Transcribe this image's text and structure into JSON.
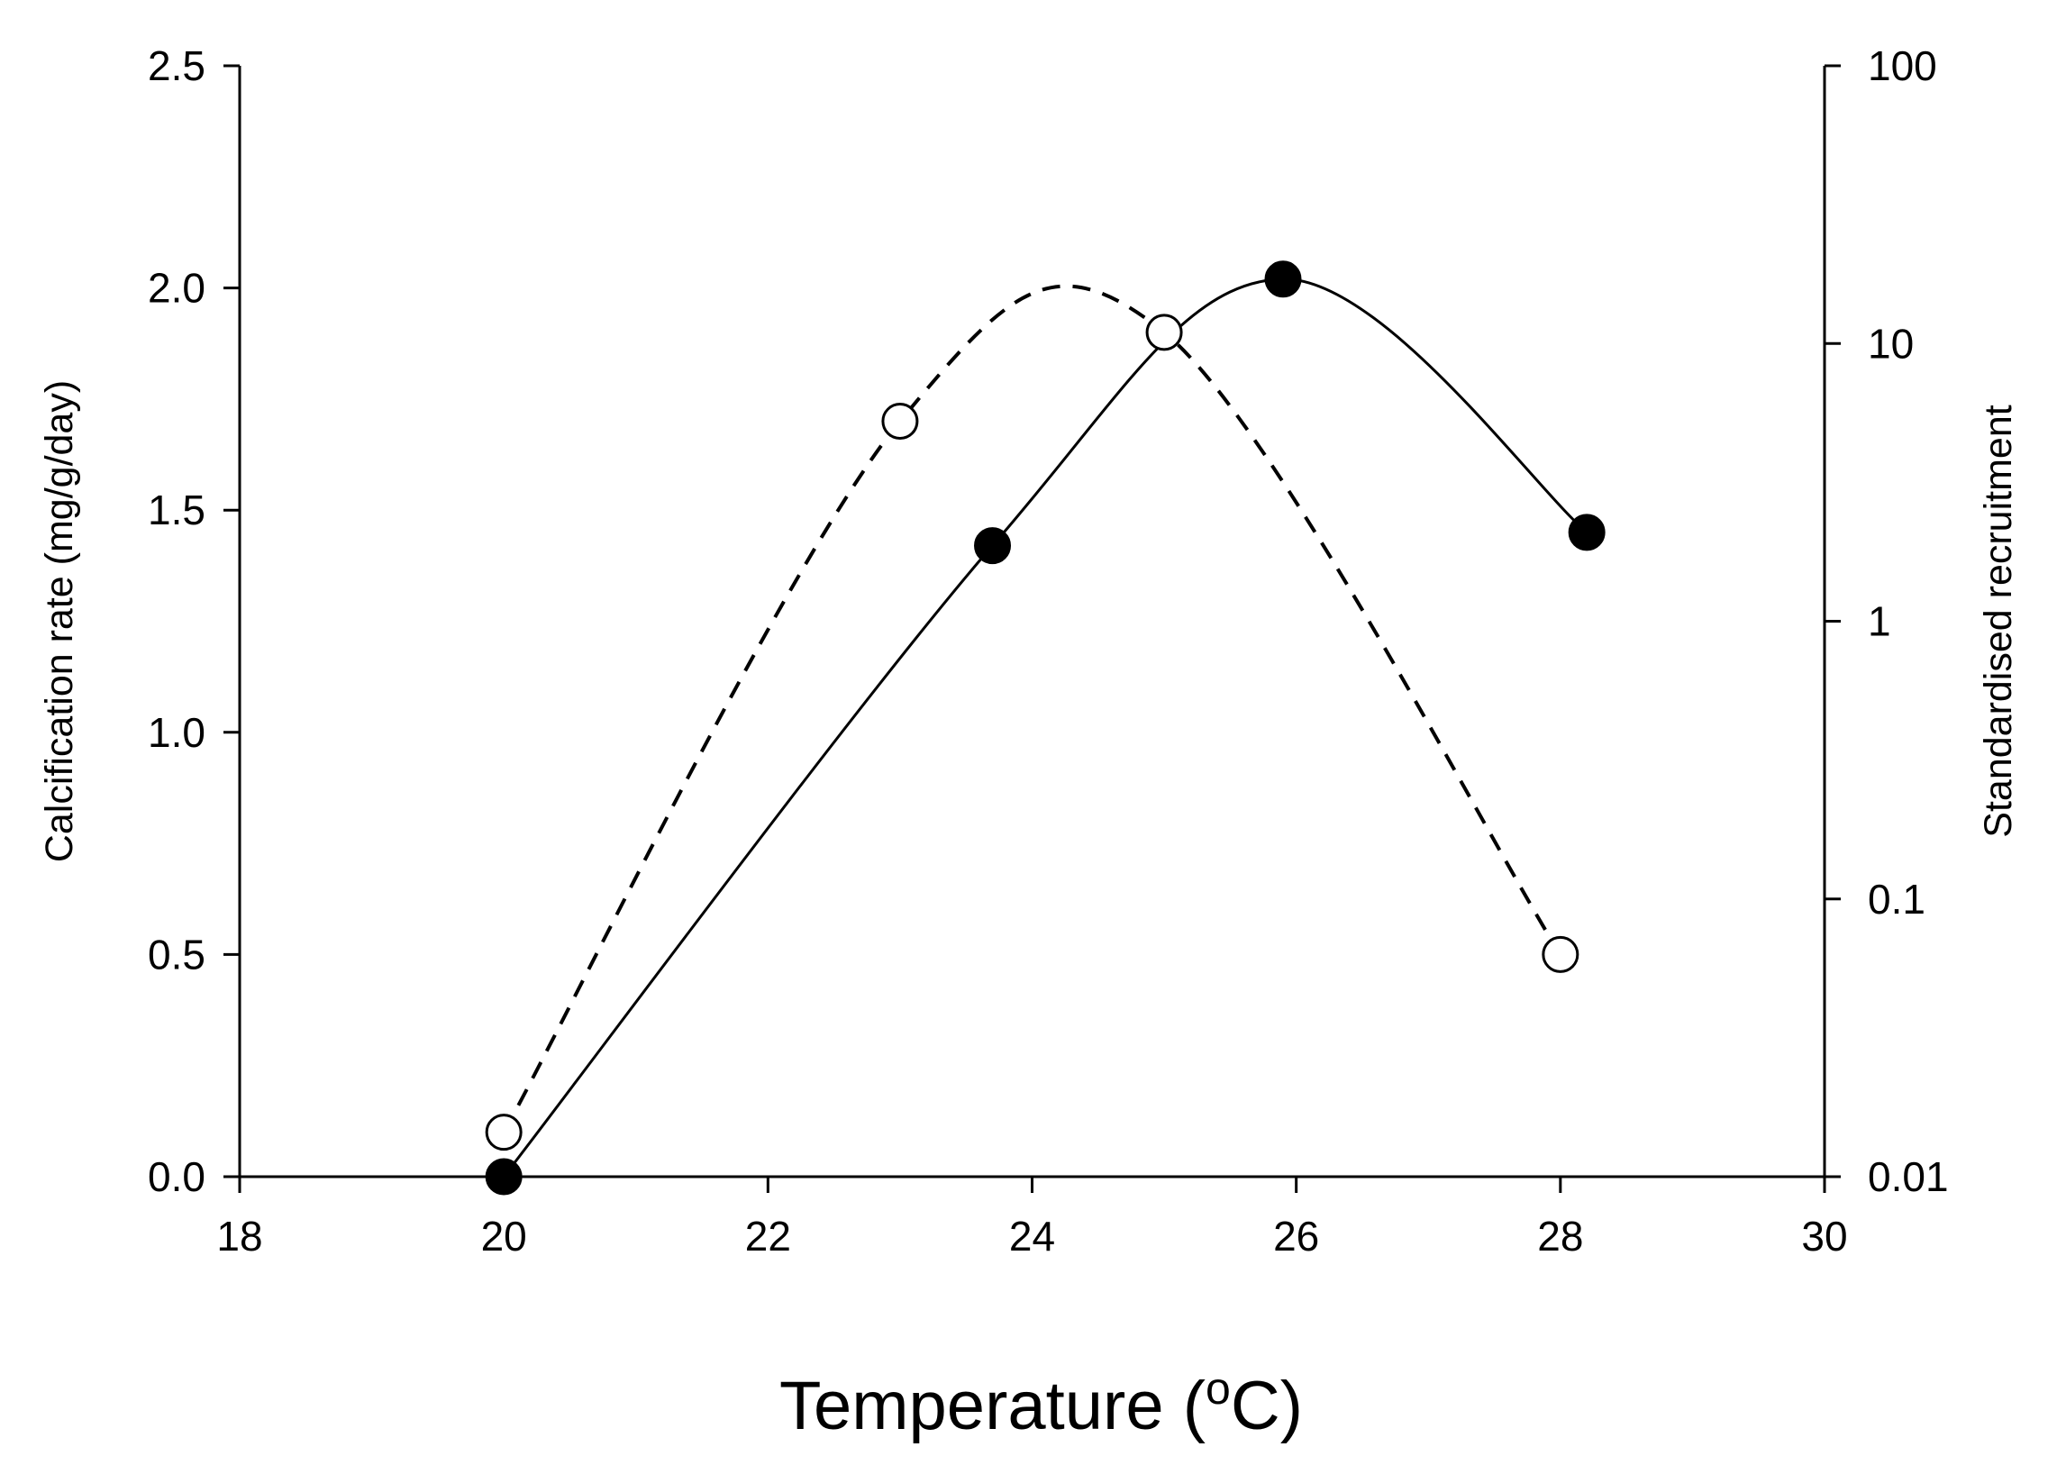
{
  "chart_data": {
    "type": "scatter",
    "xlabel": "Temperature (",
    "xlabel_unit_sup": "o",
    "xlabel_unit_tail": "C)",
    "ylabel_left": "Calcification rate (mg/g/day)",
    "ylabel_right": "Standardised recruitment",
    "x_ticks": [
      "18",
      "20",
      "22",
      "24",
      "26",
      "28",
      "30"
    ],
    "y_left_ticks": [
      "0.0",
      "0.5",
      "1.0",
      "1.5",
      "2.0",
      "2.5"
    ],
    "y_right_ticks": [
      "0.01",
      "0.1",
      "1",
      "10",
      "100"
    ],
    "xlim": [
      18,
      30
    ],
    "ylim_left": [
      0,
      2.5
    ],
    "ylim_right": [
      0.01,
      100
    ],
    "y_right_scale": "log",
    "grid": false,
    "series": [
      {
        "axis": "left",
        "marker": "filled-circle",
        "line": "solid",
        "points": [
          {
            "x": 20,
            "y": 0.0
          },
          {
            "x": 23.7,
            "y": 1.42
          },
          {
            "x": 25.9,
            "y": 2.02
          },
          {
            "x": 28.2,
            "y": 1.45
          }
        ],
        "color": "#000000"
      },
      {
        "axis": "left",
        "marker": "open-circle",
        "line": "dashed",
        "points": [
          {
            "x": 20,
            "y": 0.1
          },
          {
            "x": 23,
            "y": 1.7
          },
          {
            "x": 25,
            "y": 1.9
          },
          {
            "x": 28,
            "y": 0.5
          }
        ],
        "color": "#000000"
      }
    ]
  }
}
